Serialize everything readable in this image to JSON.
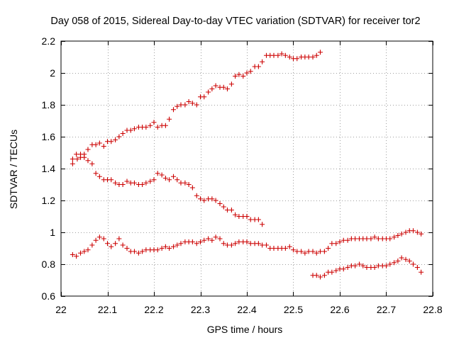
{
  "chart_data": {
    "type": "scatter",
    "title": "Day 058 of 2015, Sidereal Day-to-day VTEC variation (SDTVAR) for receiver tor2",
    "xlabel": "GPS time / hours",
    "ylabel": "SDTVAR / TECUs",
    "xlim": [
      22,
      22.8
    ],
    "ylim": [
      0.6,
      2.2
    ],
    "xticks": [
      "22",
      "22.1",
      "22.2",
      "22.3",
      "22.4",
      "22.5",
      "22.6",
      "22.7",
      "22.8"
    ],
    "yticks": [
      "0.6",
      "0.8",
      "1",
      "1.2",
      "1.4",
      "1.6",
      "1.8",
      "2",
      "2.2"
    ],
    "grid": true,
    "marker": "plus",
    "color": "#cc0000",
    "series": [
      {
        "x": [
          22.025,
          22.035,
          22.042,
          22.05,
          22.058,
          22.067,
          22.075,
          22.083,
          22.092,
          22.1,
          22.108,
          22.117,
          22.125,
          22.133,
          22.142,
          22.15,
          22.158,
          22.167,
          22.175,
          22.183,
          22.192,
          22.2,
          22.208,
          22.217,
          22.225,
          22.233,
          22.242,
          22.25,
          22.258,
          22.267,
          22.275,
          22.283,
          22.292,
          22.3,
          22.308,
          22.317,
          22.325,
          22.333,
          22.342,
          22.35,
          22.358,
          22.367,
          22.375,
          22.383,
          22.392,
          22.4,
          22.408,
          22.417,
          22.425,
          22.433,
          22.442,
          22.45,
          22.458,
          22.467,
          22.475,
          22.483,
          22.492,
          22.5,
          22.508,
          22.517,
          22.525,
          22.533,
          22.542,
          22.55,
          22.558
        ],
        "values": [
          1.43,
          1.46,
          1.47,
          1.49,
          1.52,
          1.55,
          1.55,
          1.56,
          1.54,
          1.57,
          1.57,
          1.58,
          1.6,
          1.62,
          1.64,
          1.64,
          1.65,
          1.66,
          1.66,
          1.66,
          1.67,
          1.69,
          1.66,
          1.67,
          1.67,
          1.71,
          1.77,
          1.79,
          1.8,
          1.8,
          1.82,
          1.81,
          1.8,
          1.85,
          1.85,
          1.88,
          1.9,
          1.92,
          1.91,
          1.91,
          1.9,
          1.93,
          1.98,
          1.99,
          1.98,
          2.0,
          2.01,
          2.04,
          2.04,
          2.07,
          2.11,
          2.11,
          2.11,
          2.11,
          2.12,
          2.11,
          2.1,
          2.09,
          2.09,
          2.1,
          2.1,
          2.1,
          2.1,
          2.11,
          2.13
        ]
      },
      {
        "x": [
          22.025,
          22.033,
          22.042,
          22.05,
          22.058,
          22.067,
          22.075,
          22.083,
          22.092,
          22.1,
          22.108,
          22.117,
          22.125,
          22.133,
          22.142,
          22.15,
          22.158,
          22.167,
          22.175,
          22.183,
          22.192,
          22.2,
          22.208,
          22.217,
          22.225,
          22.233,
          22.242,
          22.25,
          22.258,
          22.267,
          22.275,
          22.283,
          22.292,
          22.3,
          22.308,
          22.317,
          22.325,
          22.333,
          22.342,
          22.35,
          22.358,
          22.367,
          22.375,
          22.383,
          22.392,
          22.4,
          22.408,
          22.417,
          22.425,
          22.433
        ],
        "values": [
          1.46,
          1.49,
          1.49,
          1.47,
          1.45,
          1.43,
          1.37,
          1.35,
          1.33,
          1.33,
          1.33,
          1.31,
          1.3,
          1.3,
          1.32,
          1.31,
          1.31,
          1.3,
          1.3,
          1.31,
          1.32,
          1.33,
          1.37,
          1.36,
          1.34,
          1.33,
          1.35,
          1.33,
          1.31,
          1.31,
          1.3,
          1.28,
          1.23,
          1.21,
          1.2,
          1.21,
          1.21,
          1.2,
          1.18,
          1.16,
          1.14,
          1.14,
          1.11,
          1.1,
          1.1,
          1.1,
          1.08,
          1.08,
          1.08,
          1.05
        ]
      },
      {
        "x": [
          22.025,
          22.033,
          22.042,
          22.05,
          22.058,
          22.067,
          22.075,
          22.083,
          22.092,
          22.1,
          22.108,
          22.117,
          22.125,
          22.133,
          22.142,
          22.15,
          22.158,
          22.167,
          22.175,
          22.183,
          22.192,
          22.2,
          22.208,
          22.217,
          22.225,
          22.233,
          22.242,
          22.25,
          22.258,
          22.267,
          22.275,
          22.283,
          22.292,
          22.3,
          22.308,
          22.317,
          22.325,
          22.333,
          22.342,
          22.35,
          22.358,
          22.367,
          22.375,
          22.383,
          22.392,
          22.4,
          22.408,
          22.417,
          22.425,
          22.433,
          22.442,
          22.45,
          22.458,
          22.467,
          22.475,
          22.483,
          22.492,
          22.5,
          22.508,
          22.517,
          22.525,
          22.533,
          22.542,
          22.55,
          22.558,
          22.567,
          22.575,
          22.583,
          22.592,
          22.6,
          22.608,
          22.617,
          22.625,
          22.633,
          22.642,
          22.65,
          22.658,
          22.667,
          22.675,
          22.683,
          22.692,
          22.7,
          22.708,
          22.717,
          22.725,
          22.733,
          22.742,
          22.75,
          22.758,
          22.767,
          22.775
        ],
        "values": [
          0.86,
          0.85,
          0.87,
          0.88,
          0.89,
          0.92,
          0.95,
          0.97,
          0.96,
          0.93,
          0.91,
          0.93,
          0.96,
          0.92,
          0.9,
          0.88,
          0.88,
          0.87,
          0.88,
          0.89,
          0.89,
          0.89,
          0.89,
          0.9,
          0.91,
          0.9,
          0.91,
          0.92,
          0.93,
          0.94,
          0.94,
          0.94,
          0.93,
          0.94,
          0.95,
          0.96,
          0.95,
          0.97,
          0.96,
          0.93,
          0.92,
          0.92,
          0.93,
          0.94,
          0.94,
          0.94,
          0.93,
          0.93,
          0.93,
          0.92,
          0.92,
          0.9,
          0.9,
          0.9,
          0.9,
          0.9,
          0.91,
          0.89,
          0.88,
          0.88,
          0.87,
          0.88,
          0.88,
          0.87,
          0.88,
          0.88,
          0.9,
          0.93,
          0.93,
          0.94,
          0.95,
          0.95,
          0.96,
          0.96,
          0.96,
          0.96,
          0.96,
          0.96,
          0.97,
          0.96,
          0.96,
          0.96,
          0.96,
          0.97,
          0.98,
          0.99,
          1.0,
          1.01,
          1.01,
          1.0,
          0.99
        ]
      },
      {
        "x": [
          22.542,
          22.55,
          22.558,
          22.567,
          22.575,
          22.583,
          22.592,
          22.6,
          22.608,
          22.617,
          22.625,
          22.633,
          22.642,
          22.65,
          22.658,
          22.667,
          22.675,
          22.683,
          22.692,
          22.7,
          22.708,
          22.717,
          22.725,
          22.733,
          22.742,
          22.75,
          22.758,
          22.767,
          22.775
        ],
        "values": [
          0.73,
          0.73,
          0.72,
          0.73,
          0.75,
          0.75,
          0.76,
          0.77,
          0.77,
          0.78,
          0.79,
          0.79,
          0.8,
          0.79,
          0.78,
          0.78,
          0.78,
          0.79,
          0.79,
          0.79,
          0.8,
          0.81,
          0.82,
          0.84,
          0.83,
          0.82,
          0.8,
          0.78,
          0.75
        ]
      }
    ]
  }
}
